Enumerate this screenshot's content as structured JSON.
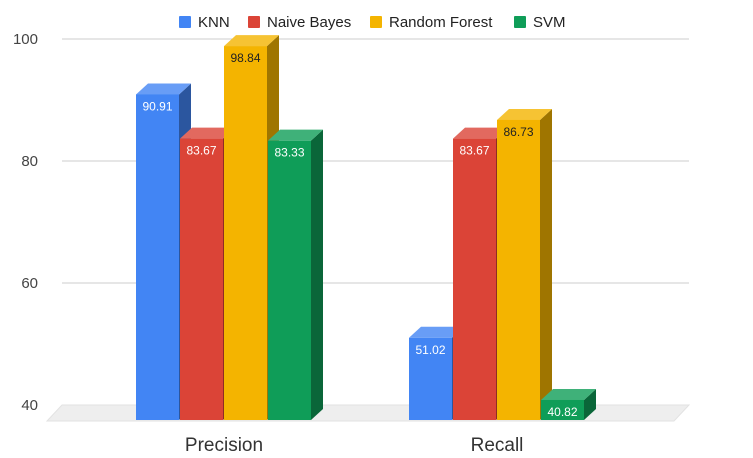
{
  "chart_data": {
    "type": "bar",
    "title": "",
    "xlabel": "",
    "ylabel": "",
    "categories": [
      "Precision",
      "Recall"
    ],
    "series": [
      {
        "name": "KNN",
        "values": [
          90.91,
          51.02
        ],
        "color": "#4285f4"
      },
      {
        "name": "Naive Bayes",
        "values": [
          83.67,
          83.67
        ],
        "color": "#db4437"
      },
      {
        "name": "Random Forest",
        "values": [
          98.84,
          86.73
        ],
        "color": "#f4b400"
      },
      {
        "name": "SVM",
        "values": [
          83.33,
          40.82
        ],
        "color": "#0f9d58"
      }
    ],
    "ylim": [
      40,
      100
    ],
    "yticks": [
      40,
      60,
      80,
      100
    ],
    "grid": true,
    "legend_position": "top",
    "style": "3d"
  }
}
